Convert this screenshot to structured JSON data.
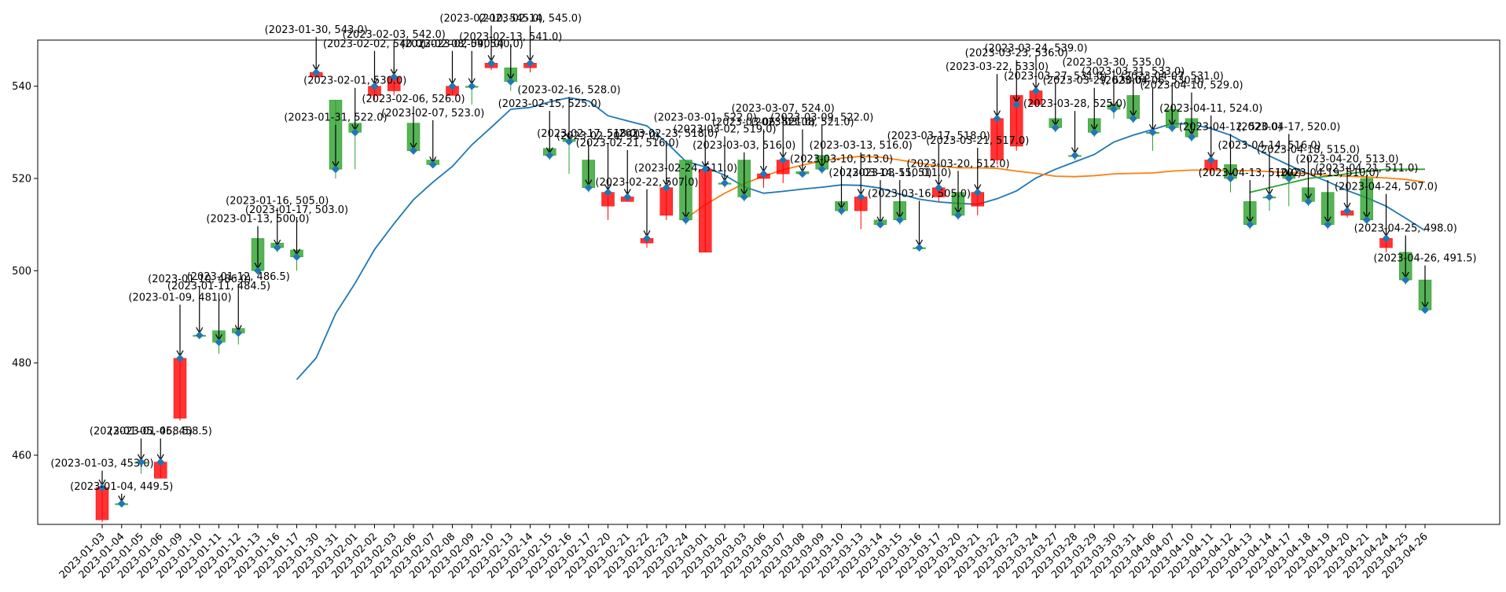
{
  "chart_data": {
    "type": "candlestick",
    "title": "",
    "xlabel": "",
    "ylabel": "",
    "ylim": [
      445,
      550
    ],
    "yticks": [
      460,
      480,
      500,
      520,
      540
    ],
    "grid": false,
    "legend": "none",
    "colors": {
      "up": "#2ca02c",
      "down": "#ff0000",
      "line1": "#1f77b4",
      "line2": "#ff7f0e",
      "line3": "#2ca02c",
      "marker": "#1f77b4"
    },
    "dates": [
      "2023-01-03",
      "2023-01-04",
      "2023-01-05",
      "2023-01-06",
      "2023-01-09",
      "2023-01-10",
      "2023-01-11",
      "2023-01-12",
      "2023-01-13",
      "2023-01-16",
      "2023-01-17",
      "2023-01-30",
      "2023-01-31",
      "2023-02-01",
      "2023-02-02",
      "2023-02-03",
      "2023-02-06",
      "2023-02-07",
      "2023-02-08",
      "2023-02-09",
      "2023-02-10",
      "2023-02-13",
      "2023-02-14",
      "2023-02-15",
      "2023-02-16",
      "2023-02-17",
      "2023-02-20",
      "2023-02-21",
      "2023-02-22",
      "2023-02-23",
      "2023-02-24",
      "2023-03-01",
      "2023-03-02",
      "2023-03-03",
      "2023-03-06",
      "2023-03-07",
      "2023-03-08",
      "2023-03-09",
      "2023-03-10",
      "2023-03-13",
      "2023-03-14",
      "2023-03-15",
      "2023-03-16",
      "2023-03-17",
      "2023-03-20",
      "2023-03-21",
      "2023-03-22",
      "2023-03-23",
      "2023-03-24",
      "2023-03-27",
      "2023-03-28",
      "2023-03-29",
      "2023-03-30",
      "2023-03-31",
      "2023-04-06",
      "2023-04-07",
      "2023-04-10",
      "2023-04-11",
      "2023-04-12",
      "2023-04-13",
      "2023-04-14",
      "2023-04-17",
      "2023-04-18",
      "2023-04-19",
      "2023-04-20",
      "2023-04-21",
      "2023-04-24",
      "2023-04-25",
      "2023-04-26"
    ],
    "candles": [
      [
        453,
        446,
        453.5,
        445.5
      ],
      [
        449.5,
        449.5,
        450,
        449
      ],
      [
        458.5,
        458.5,
        459,
        456
      ],
      [
        458.5,
        455,
        459,
        455
      ],
      [
        481,
        468,
        481,
        467.5
      ],
      [
        486,
        486,
        486.5,
        485.5
      ],
      [
        484.5,
        487,
        487.5,
        482
      ],
      [
        486.5,
        487.5,
        488,
        484
      ],
      [
        500,
        507,
        507.5,
        499.5
      ],
      [
        505,
        506,
        506.5,
        504
      ],
      [
        503,
        504.5,
        505,
        500
      ],
      [
        543,
        542,
        544,
        542
      ],
      [
        522,
        537,
        537,
        520
      ],
      [
        530,
        532,
        532,
        522
      ],
      [
        540,
        538,
        541,
        537
      ],
      [
        542,
        539,
        544,
        538
      ],
      [
        526,
        532,
        532,
        525.5
      ],
      [
        523,
        524,
        524,
        522.5
      ],
      [
        540,
        538,
        541,
        538
      ],
      [
        540,
        540,
        541,
        536
      ],
      [
        545,
        544,
        545.5,
        543.5
      ],
      [
        541,
        544,
        544,
        539
      ],
      [
        545,
        544,
        545.5,
        543
      ],
      [
        525,
        526.5,
        527,
        524
      ],
      [
        528,
        528.5,
        530,
        521
      ],
      [
        518,
        524,
        525,
        517
      ],
      [
        517,
        514,
        518,
        511
      ],
      [
        516,
        515,
        518,
        515
      ],
      [
        507,
        506,
        507.5,
        505
      ],
      [
        518,
        512,
        519,
        511
      ],
      [
        511,
        524,
        524,
        510
      ],
      [
        522,
        504,
        523,
        504
      ],
      [
        519,
        519,
        520,
        518
      ],
      [
        516,
        524,
        524,
        515
      ],
      [
        521,
        520,
        521.5,
        518
      ],
      [
        524,
        521,
        525,
        519
      ],
      [
        521,
        521.5,
        522,
        520.5
      ],
      [
        522,
        525,
        525,
        521
      ],
      [
        513,
        515,
        515,
        512
      ],
      [
        516,
        513,
        517,
        509
      ],
      [
        510,
        511,
        511.5,
        509.5
      ],
      [
        511,
        515,
        515,
        510
      ],
      [
        505,
        505,
        505.5,
        504.5
      ],
      [
        518,
        516,
        519,
        515
      ],
      [
        512,
        517,
        517,
        511
      ],
      [
        517,
        514,
        518,
        512
      ],
      [
        533,
        524,
        534,
        523
      ],
      [
        538,
        527,
        538.5,
        526
      ],
      [
        539,
        536,
        540,
        535.5
      ],
      [
        531,
        533,
        533,
        530
      ],
      [
        525,
        525,
        526,
        524
      ],
      [
        530,
        533,
        533,
        529
      ],
      [
        535,
        536,
        536.5,
        533
      ],
      [
        533,
        538,
        538,
        532
      ],
      [
        530,
        530,
        531,
        526
      ],
      [
        531,
        535,
        535,
        530
      ],
      [
        529,
        533,
        533,
        528
      ],
      [
        524,
        522,
        525,
        521
      ],
      [
        520,
        523,
        523,
        517
      ],
      [
        510,
        515,
        515,
        509
      ],
      [
        516,
        516,
        517,
        513
      ],
      [
        520,
        521,
        522,
        514
      ],
      [
        515,
        518,
        518,
        514
      ],
      [
        510,
        517,
        517,
        509
      ],
      [
        513,
        512,
        514,
        511.5
      ],
      [
        511,
        520,
        522,
        510
      ],
      [
        507,
        505,
        508,
        504
      ],
      [
        498,
        504,
        506,
        497
      ],
      [
        491.5,
        498,
        498,
        491
      ]
    ],
    "series": [
      {
        "values": [
          null,
          null,
          null,
          null,
          null,
          null,
          null,
          null,
          null,
          null,
          476.4,
          481.1,
          490.7,
          497.3,
          504.6,
          510.2,
          515.4,
          519.2,
          522.6,
          527.3,
          531.1,
          535,
          535.4,
          536.6,
          537.5,
          536.8,
          533.6,
          532.5,
          531.4,
          527.8,
          523.7,
          522.5,
          520.7,
          518.2,
          516.8,
          517.2,
          517.7,
          518.1,
          518.6,
          518.5,
          517.9,
          516.6,
          515.5,
          514.9,
          514.6,
          514.4,
          515.6,
          517.3,
          520.1,
          522,
          523.6,
          525.2,
          527.9,
          529.4,
          530.6,
          531.9,
          531.8,
          530.8,
          529.4,
          527.1,
          524.9,
          522.9,
          521,
          519.3,
          517.4,
          515.8,
          514,
          511.4,
          508.7
        ]
      },
      {
        "values": [
          null,
          null,
          null,
          null,
          null,
          null,
          null,
          null,
          null,
          null,
          null,
          null,
          null,
          null,
          null,
          null,
          null,
          null,
          null,
          null,
          null,
          null,
          null,
          null,
          null,
          null,
          null,
          null,
          null,
          null,
          511.3,
          514.3,
          516.8,
          518.9,
          520.5,
          521.9,
          522.9,
          523.8,
          524.4,
          524.8,
          524.6,
          524,
          523.3,
          522.7,
          522.3,
          522.3,
          522.2,
          521.6,
          521.1,
          520.5,
          520.4,
          520.6,
          521,
          521.1,
          521.2,
          521.6,
          521.8,
          521.8,
          521.7,
          521.7,
          521.5,
          521.3,
          521,
          520.7,
          520.5,
          520.3,
          520.1,
          519.8,
          519.2
        ]
      },
      {
        "values": [
          null,
          null,
          null,
          null,
          null,
          null,
          null,
          null,
          null,
          null,
          null,
          null,
          null,
          null,
          null,
          null,
          null,
          null,
          null,
          null,
          null,
          null,
          null,
          null,
          null,
          null,
          null,
          null,
          null,
          null,
          null,
          null,
          null,
          null,
          null,
          null,
          null,
          null,
          null,
          null,
          null,
          null,
          null,
          null,
          null,
          null,
          null,
          null,
          null,
          null,
          null,
          null,
          null,
          null,
          null,
          null,
          null,
          null,
          null,
          517,
          518,
          519,
          520,
          520.5,
          521,
          521.5,
          522,
          522,
          522
        ]
      }
    ],
    "annotations": [
      {
        "i": 0,
        "y": 453.0,
        "label": "(2023-01-03, 453.0)",
        "ty": 457.5
      },
      {
        "i": 1,
        "y": 449.5,
        "label": "(2023-01-04, 449.5)",
        "ty": 452.5
      },
      {
        "i": 2,
        "y": 458.5,
        "label": "(2023-01-05, 458.5)",
        "ty": 464.5
      },
      {
        "i": 3,
        "y": 458.5,
        "label": "(2023-01-06, 458.5)",
        "ty": 464.5
      },
      {
        "i": 4,
        "y": 481.0,
        "label": "(2023-01-09, 481.0)",
        "ty": 493.5
      },
      {
        "i": 5,
        "y": 486.0,
        "label": "(2023-01-10, 486.0)",
        "ty": 497.5
      },
      {
        "i": 6,
        "y": 484.5,
        "label": "(2023-01-11, 484.5)",
        "ty": 496.0
      },
      {
        "i": 7,
        "y": 486.5,
        "label": "(2023-01-12, 486.5)",
        "ty": 498.0
      },
      {
        "i": 8,
        "y": 500.0,
        "label": "(2023-01-13, 500.0)",
        "ty": 510.5
      },
      {
        "i": 9,
        "y": 505.0,
        "label": "(2023-01-16, 505.0)",
        "ty": 514.5
      },
      {
        "i": 10,
        "y": 503.0,
        "label": "(2023-01-17, 503.0)",
        "ty": 512.5
      },
      {
        "i": 11,
        "y": 543.0,
        "label": "(2023-01-30, 543.0)",
        "ty": 551.5
      },
      {
        "i": 12,
        "y": 522.0,
        "label": "(2023-01-31, 522.0)",
        "ty": 532.5
      },
      {
        "i": 13,
        "y": 530.0,
        "label": "(2023-02-01, 530.0)",
        "ty": 540.5
      },
      {
        "i": 14,
        "y": 540.0,
        "label": "(2023-02-02, 540.0)",
        "ty": 548.5
      },
      {
        "i": 15,
        "y": 542.0,
        "label": "(2023-02-03, 542.0)",
        "ty": 550.5
      },
      {
        "i": 16,
        "y": 526.0,
        "label": "(2023-02-06, 526.0)",
        "ty": 536.5
      },
      {
        "i": 17,
        "y": 523.0,
        "label": "(2023-02-07, 523.0)",
        "ty": 533.5
      },
      {
        "i": 18,
        "y": 540.0,
        "label": "(2023-02-08, 540.0)",
        "ty": 548.5
      },
      {
        "i": 19,
        "y": 540.0,
        "label": "(2023-02-09, 540.0)",
        "ty": 548.5
      },
      {
        "i": 20,
        "y": 545.0,
        "label": "(2023-02-10, 545.0)",
        "ty": 554.0
      },
      {
        "i": 21,
        "y": 541.0,
        "label": "(2023-02-13, 541.0)",
        "ty": 550.0
      },
      {
        "i": 22,
        "y": 545.0,
        "label": "(2023-02-14, 545.0)",
        "ty": 554.0
      },
      {
        "i": 23,
        "y": 525.0,
        "label": "(2023-02-15, 525.0)",
        "ty": 535.5
      },
      {
        "i": 24,
        "y": 528.0,
        "label": "(2023-02-16, 528.0)",
        "ty": 538.5
      },
      {
        "i": 25,
        "y": 518.0,
        "label": "(2023-02-17, 518.0)",
        "ty": 529.0
      },
      {
        "i": 26,
        "y": 517.0,
        "label": "(2023-02-20, 517.0)",
        "ty": 528.5
      },
      {
        "i": 27,
        "y": 516.0,
        "label": "(2023-02-21, 516.0)",
        "ty": 527.0
      },
      {
        "i": 28,
        "y": 507.0,
        "label": "(2023-02-22, 507.0)",
        "ty": 518.5
      },
      {
        "i": 29,
        "y": 518.0,
        "label": "(2023-02-23, 518.0)",
        "ty": 529.0
      },
      {
        "i": 30,
        "y": 511.0,
        "label": "(2023-02-24, 511.0)",
        "ty": 521.5
      },
      {
        "i": 31,
        "y": 522.0,
        "label": "(2023-03-01, 522.0)",
        "ty": 532.5
      },
      {
        "i": 32,
        "y": 519.0,
        "label": "(2023-03-02, 519.0)",
        "ty": 530.0
      },
      {
        "i": 33,
        "y": 516.0,
        "label": "(2023-03-03, 516.0)",
        "ty": 526.5
      },
      {
        "i": 34,
        "y": 521.0,
        "label": "(2023-03-06, 521.0)",
        "ty": 531.5
      },
      {
        "i": 35,
        "y": 524.0,
        "label": "(2023-03-07, 524.0)",
        "ty": 534.5
      },
      {
        "i": 36,
        "y": 521.0,
        "label": "(2023-03-08, 521.0)",
        "ty": 531.5
      },
      {
        "i": 37,
        "y": 522.0,
        "label": "(2023-03-09, 522.0)",
        "ty": 532.5
      },
      {
        "i": 38,
        "y": 513.0,
        "label": "(2023-03-10, 513.0)",
        "ty": 523.5
      },
      {
        "i": 39,
        "y": 516.0,
        "label": "(2023-03-13, 516.0)",
        "ty": 526.5
      },
      {
        "i": 40,
        "y": 510.0,
        "label": "(2023-03-14, 510.0)",
        "ty": 520.5
      },
      {
        "i": 41,
        "y": 511.0,
        "label": "(2023-03-15, 511.0)",
        "ty": 520.5
      },
      {
        "i": 42,
        "y": 505.0,
        "label": "(2023-03-16, 505.0)",
        "ty": 516.0
      },
      {
        "i": 43,
        "y": 518.0,
        "label": "(2023-03-17, 518.0)",
        "ty": 528.5
      },
      {
        "i": 44,
        "y": 512.0,
        "label": "(2023-03-20, 512.0)",
        "ty": 522.5
      },
      {
        "i": 45,
        "y": 517.0,
        "label": "(2023-03-21, 517.0)",
        "ty": 527.5
      },
      {
        "i": 46,
        "y": 533.0,
        "label": "(2023-03-22, 533.0)",
        "ty": 543.5
      },
      {
        "i": 47,
        "y": 536.0,
        "label": "(2023-03-23, 536.0)",
        "ty": 546.5
      },
      {
        "i": 48,
        "y": 539.0,
        "label": "(2023-03-24, 539.0)",
        "ty": 547.5
      },
      {
        "i": 49,
        "y": 531.0,
        "label": "(2023-03-27, 531.0)",
        "ty": 541.5
      },
      {
        "i": 50,
        "y": 525.0,
        "label": "(2023-03-28, 525.0)",
        "ty": 535.5
      },
      {
        "i": 51,
        "y": 530.0,
        "label": "(2023-03-29, 530.0)",
        "ty": 540.5
      },
      {
        "i": 52,
        "y": 535.0,
        "label": "(2023-03-30, 535.0)",
        "ty": 544.5
      },
      {
        "i": 53,
        "y": 533.0,
        "label": "(2023-03-31, 533.0)",
        "ty": 542.5
      },
      {
        "i": 54,
        "y": 530.0,
        "label": "(2023-04-06, 530.0)",
        "ty": 540.5
      },
      {
        "i": 55,
        "y": 531.0,
        "label": "(2023-04-07, 531.0)",
        "ty": 541.5
      },
      {
        "i": 56,
        "y": 529.0,
        "label": "(2023-04-10, 529.0)",
        "ty": 539.5
      },
      {
        "i": 57,
        "y": 524.0,
        "label": "(2023-04-11, 524.0)",
        "ty": 534.5
      },
      {
        "i": 58,
        "y": 520.0,
        "label": "(2023-04-12, 520.0)",
        "ty": 530.5
      },
      {
        "i": 59,
        "y": 510.0,
        "label": "(2023-04-13, 510.0)",
        "ty": 520.5
      },
      {
        "i": 60,
        "y": 516.0,
        "label": "(2023-04-14, 516.0)",
        "ty": 526.5
      },
      {
        "i": 61,
        "y": 520.0,
        "label": "(2023-04-17, 520.0)",
        "ty": 530.5
      },
      {
        "i": 62,
        "y": 515.0,
        "label": "(2023-04-18, 515.0)",
        "ty": 525.5
      },
      {
        "i": 63,
        "y": 510.0,
        "label": "(2023-04-19, 510.0)",
        "ty": 520.5
      },
      {
        "i": 64,
        "y": 513.0,
        "label": "(2023-04-20, 513.0)",
        "ty": 523.5
      },
      {
        "i": 65,
        "y": 511.0,
        "label": "(2023-04-21, 511.0)",
        "ty": 521.5
      },
      {
        "i": 66,
        "y": 507.0,
        "label": "(2023-04-24, 507.0)",
        "ty": 517.5
      },
      {
        "i": 67,
        "y": 498.0,
        "label": "(2023-04-25, 498.0)",
        "ty": 508.5
      },
      {
        "i": 68,
        "y": 491.5,
        "label": "(2023-04-26, 491.5)",
        "ty": 502.0
      }
    ]
  }
}
